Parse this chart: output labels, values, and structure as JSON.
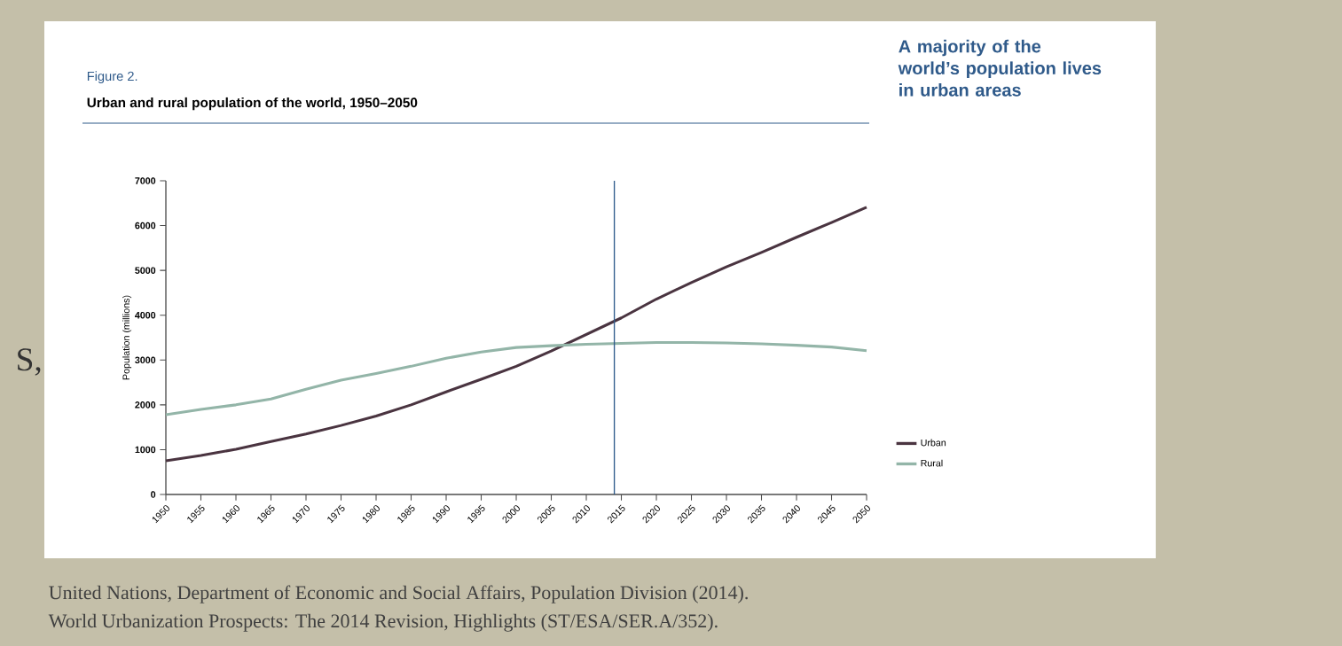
{
  "chart_data": {
    "type": "line",
    "title": "Urban and rural population of the world, 1950–2050",
    "subtitle": "A majority of the world’s population lives in urban areas",
    "ylabel": "Population (millions)",
    "x": [
      1950,
      1955,
      1960,
      1965,
      1970,
      1975,
      1980,
      1985,
      1990,
      1995,
      2000,
      2005,
      2010,
      2015,
      2020,
      2025,
      2030,
      2035,
      2040,
      2045,
      2050
    ],
    "series": [
      {
        "name": "Urban",
        "color": "#4a3440",
        "values": [
          750,
          870,
          1010,
          1180,
          1350,
          1540,
          1750,
          2000,
          2290,
          2570,
          2860,
          3200,
          3570,
          3940,
          4360,
          4730,
          5080,
          5400,
          5740,
          6070,
          6410
        ]
      },
      {
        "name": "Rural",
        "color": "#93b5a8",
        "values": [
          1780,
          1900,
          2000,
          2130,
          2350,
          2550,
          2700,
          2860,
          3040,
          3180,
          3280,
          3320,
          3350,
          3370,
          3390,
          3390,
          3380,
          3360,
          3330,
          3290,
          3210
        ]
      }
    ],
    "xlim": [
      1950,
      2050
    ],
    "xticks": [
      1950,
      1955,
      1960,
      1965,
      1970,
      1975,
      1980,
      1985,
      1990,
      1995,
      2000,
      2005,
      2010,
      2015,
      2020,
      2025,
      2030,
      2035,
      2040,
      2045,
      2050
    ],
    "ylim": [
      0,
      7000
    ],
    "yticks": [
      0,
      1000,
      2000,
      3000,
      4000,
      5000,
      6000,
      7000
    ],
    "ref_lines": [
      {
        "axis": "x",
        "value": 2014,
        "color": "#2e5a8a"
      }
    ],
    "legend": "right",
    "annotations": [
      "Figure 2.",
      "United Nations, Department of Economic and Social Affairs, Population Division (2014).",
      "World Urbanization Prospects: The 2014 Revision, Highlights (ST/ESA/SER.A/352).",
      "S,"
    ]
  }
}
